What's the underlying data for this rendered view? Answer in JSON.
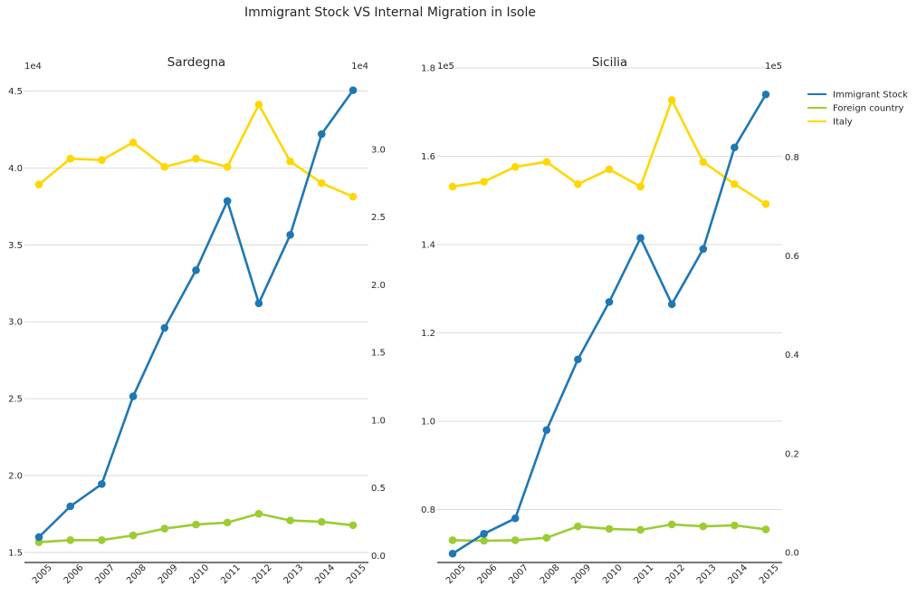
{
  "figure": {
    "title": "Immigrant Stock VS Internal Migration in Isole"
  },
  "legend": {
    "items": [
      {
        "label": "Immigrant Stock",
        "color": "#1f77b4"
      },
      {
        "label": "Foreign country",
        "color": "#9acd32"
      },
      {
        "label": "Italy",
        "color": "#ffd700"
      }
    ]
  },
  "chart_data": [
    {
      "type": "line",
      "title": "Sardegna",
      "x": [
        "2005",
        "2006",
        "2007",
        "2008",
        "2009",
        "2010",
        "2011",
        "2012",
        "2013",
        "2014",
        "2015"
      ],
      "left_axis": {
        "offset_label": "1e4",
        "ylim": [
          1.435,
          4.65
        ],
        "ticks": [
          1.5,
          2.0,
          2.5,
          3.0,
          3.5,
          4.0,
          4.5
        ],
        "tick_labels": [
          "1.5",
          "2.0",
          "2.5",
          "3.0",
          "3.5",
          "4.0",
          "4.5"
        ],
        "grid": true
      },
      "right_axis": {
        "offset_label": "1e4",
        "ylim": [
          -0.05,
          3.6
        ],
        "ticks": [
          0.0,
          0.5,
          1.0,
          1.5,
          2.0,
          2.5,
          3.0
        ],
        "tick_labels": [
          "0.0",
          "0.5",
          "1.0",
          "1.5",
          "2.0",
          "2.5",
          "3.0"
        ]
      },
      "series": [
        {
          "name": "Immigrant Stock",
          "axis": "left",
          "color": "#1f77b4",
          "values": [
            1.6,
            1.8,
            1.945,
            2.515,
            2.96,
            3.335,
            3.785,
            3.12,
            3.565,
            4.22,
            4.505
          ]
        },
        {
          "name": "Foreign country",
          "axis": "right",
          "color": "#9acd32",
          "values": [
            0.1,
            0.115,
            0.115,
            0.15,
            0.2,
            0.23,
            0.245,
            0.31,
            0.26,
            0.25,
            0.225
          ]
        },
        {
          "name": "Italy",
          "axis": "right",
          "color": "#ffd700",
          "values": [
            2.74,
            2.93,
            2.92,
            3.05,
            2.87,
            2.93,
            2.87,
            3.33,
            2.91,
            2.75,
            2.65
          ]
        }
      ]
    },
    {
      "type": "line",
      "title": "Sicilia",
      "x": [
        "2005",
        "2006",
        "2007",
        "2008",
        "2009",
        "2010",
        "2011",
        "2012",
        "2013",
        "2014",
        "2015"
      ],
      "left_axis": {
        "offset_label": "1e5",
        "ylim": [
          0.68,
          1.8
        ],
        "ticks": [
          0.8,
          1.0,
          1.2,
          1.4,
          1.6,
          1.8
        ],
        "tick_labels": [
          "0.8",
          "1.0",
          "1.2",
          "1.4",
          "1.6",
          "1.8"
        ],
        "grid": true
      },
      "right_axis": {
        "offset_label": "1e5",
        "ylim": [
          -0.02,
          0.98
        ],
        "ticks": [
          0.0,
          0.2,
          0.4,
          0.6,
          0.8
        ],
        "tick_labels": [
          "0.0",
          "0.2",
          "0.4",
          "0.6",
          "0.8"
        ]
      },
      "series": [
        {
          "name": "Immigrant Stock",
          "axis": "left",
          "color": "#1f77b4",
          "values": [
            0.7,
            0.745,
            0.78,
            0.98,
            1.14,
            1.27,
            1.415,
            1.265,
            1.39,
            1.62,
            1.74
          ]
        },
        {
          "name": "Foreign country",
          "axis": "right",
          "color": "#9acd32",
          "values": [
            0.025,
            0.024,
            0.025,
            0.03,
            0.053,
            0.048,
            0.046,
            0.057,
            0.053,
            0.055,
            0.047
          ]
        },
        {
          "name": "Italy",
          "axis": "right",
          "color": "#ffd700",
          "values": [
            0.74,
            0.75,
            0.78,
            0.79,
            0.745,
            0.775,
            0.74,
            0.915,
            0.79,
            0.745,
            0.705
          ]
        }
      ]
    }
  ]
}
